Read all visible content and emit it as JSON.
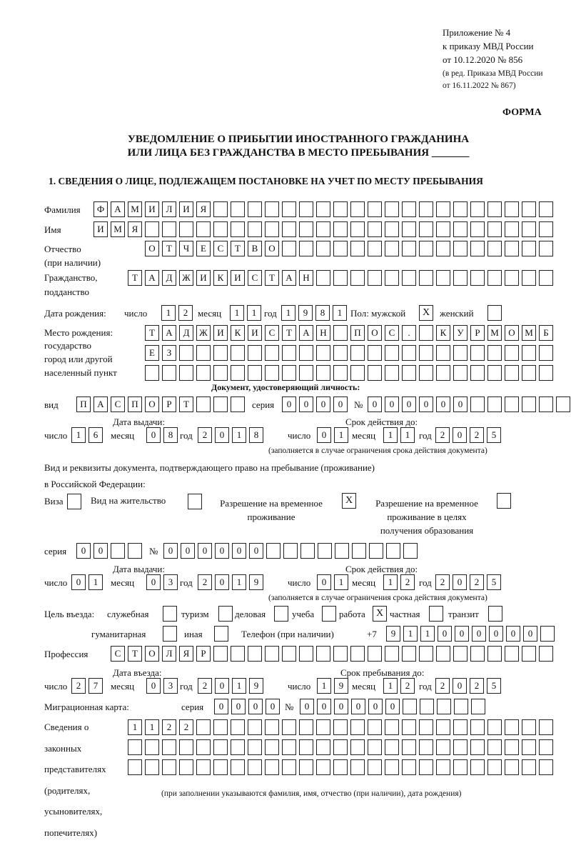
{
  "header": {
    "line1": "Приложение № 4",
    "line2": "к приказу МВД России",
    "line3": "от 10.12.2020 № 856",
    "line4": "(в ред. Приказа МВД России",
    "line5": "от 16.11.2022 № 867)",
    "form_label": "ФОРМА"
  },
  "title": {
    "line1": "УВЕДОМЛЕНИЕ О ПРИБЫТИИ ИНОСТРАННОГО ГРАЖДАНИНА",
    "line2": "ИЛИ ЛИЦА БЕЗ ГРАЖДАНСТВА В МЕСТО ПРЕБЫВАНИЯ _______"
  },
  "section1": "1. СВЕДЕНИЯ О ЛИЦЕ, ПОДЛЕЖАЩЕМ ПОСТАНОВКЕ НА УЧЕТ ПО МЕСТУ ПРЕБЫВАНИЯ",
  "person": {
    "surname_label": "Фамилия",
    "surname": [
      "Ф",
      "А",
      "М",
      "И",
      "Л",
      "И",
      "Я",
      "",
      "",
      "",
      "",
      "",
      "",
      "",
      "",
      "",
      "",
      "",
      "",
      "",
      "",
      "",
      "",
      "",
      "",
      "",
      ""
    ],
    "name_label": "Имя",
    "name": [
      "И",
      "М",
      "Я",
      "",
      "",
      "",
      "",
      "",
      "",
      "",
      "",
      "",
      "",
      "",
      "",
      "",
      "",
      "",
      "",
      "",
      "",
      "",
      "",
      "",
      "",
      "",
      ""
    ],
    "patronymic_label": "Отчество",
    "patronymic_note": "(при наличии)",
    "patronymic": [
      "О",
      "Т",
      "Ч",
      "Е",
      "С",
      "Т",
      "В",
      "О",
      "",
      "",
      "",
      "",
      "",
      "",
      "",
      "",
      "",
      "",
      "",
      "",
      "",
      "",
      "",
      ""
    ],
    "citizenship_label": "Гражданство,",
    "citizenship_label2": "подданство",
    "citizenship": [
      "Т",
      "А",
      "Д",
      "Ж",
      "И",
      "К",
      "И",
      "С",
      "Т",
      "А",
      "Н",
      "",
      "",
      "",
      "",
      "",
      "",
      "",
      "",
      "",
      "",
      "",
      "",
      "",
      ""
    ],
    "birth_date_label": "Дата рождения:",
    "day_label": "число",
    "month_label": "месяц",
    "year_label": "год",
    "birth_day": [
      "1",
      "2"
    ],
    "birth_month": [
      "1",
      "1"
    ],
    "birth_year": [
      "1",
      "9",
      "8",
      "1"
    ],
    "sex_label": "Пол: мужской",
    "male": "X",
    "female_label": "женский",
    "female": "",
    "birth_place_label1": "Место рождения:",
    "birth_place_label2": "государство",
    "birth_place_label3": "город или другой",
    "birth_place_label4": "населенный пункт",
    "birth_place_row1": [
      "Т",
      "А",
      "Д",
      "Ж",
      "И",
      "К",
      "И",
      "С",
      "Т",
      "А",
      "Н",
      "",
      "П",
      "О",
      "С",
      ".",
      "",
      "К",
      "У",
      "Р",
      "М",
      "О",
      "М",
      "Б"
    ],
    "birth_place_row2": [
      "Е",
      "З",
      "",
      "",
      "",
      "",
      "",
      "",
      "",
      "",
      "",
      "",
      "",
      "",
      "",
      "",
      "",
      "",
      "",
      "",
      "",
      "",
      "",
      ""
    ],
    "birth_place_row3": [
      "",
      "",
      "",
      "",
      "",
      "",
      "",
      "",
      "",
      "",
      "",
      "",
      "",
      "",
      "",
      "",
      "",
      "",
      "",
      "",
      "",
      "",
      "",
      ""
    ]
  },
  "id_doc": {
    "heading": "Документ, удостоверяющий личность:",
    "type_label": "вид",
    "type": [
      "П",
      "А",
      "С",
      "П",
      "О",
      "Р",
      "Т",
      "",
      "",
      ""
    ],
    "series_label": "серия",
    "series": [
      "0",
      "0",
      "0",
      "0"
    ],
    "number_label": "№",
    "number": [
      "0",
      "0",
      "0",
      "0",
      "0",
      "0",
      "",
      "",
      "",
      "",
      "",
      ""
    ],
    "issue_label": "Дата выдачи:",
    "valid_label": "Срок действия до:",
    "issue_day": [
      "1",
      "6"
    ],
    "issue_month": [
      "0",
      "8"
    ],
    "issue_year": [
      "2",
      "0",
      "1",
      "8"
    ],
    "valid_day": [
      "0",
      "1"
    ],
    "valid_month": [
      "1",
      "1"
    ],
    "valid_year": [
      "2",
      "0",
      "2",
      "5"
    ],
    "note": "(заполняется в случае ограничения срока действия документа)"
  },
  "permit": {
    "intro1": "Вид и реквизиты документа, подтверждающего право на пребывание (проживание)",
    "intro2": "в Российской Федерации:",
    "visa_label": "Виза",
    "visa": "",
    "residence_label": "Вид на жительство",
    "residence": "",
    "trp_label1": "Разрешение на временное",
    "trp_label2": "проживание",
    "trp": "X",
    "trp_edu_label1": "Разрешение на временное",
    "trp_edu_label2": "проживание в целях",
    "trp_edu_label3": "получения образования",
    "trp_edu": "",
    "series_label": "серия",
    "series": [
      "0",
      "0",
      "",
      ""
    ],
    "number_label": "№",
    "number": [
      "0",
      "0",
      "0",
      "0",
      "0",
      "0",
      "",
      "",
      "",
      "",
      "",
      "",
      "",
      "",
      ""
    ],
    "issue_label": "Дата выдачи:",
    "valid_label": "Срок действия до:",
    "issue_day": [
      "0",
      "1"
    ],
    "issue_month": [
      "0",
      "3"
    ],
    "issue_year": [
      "2",
      "0",
      "1",
      "9"
    ],
    "valid_day": [
      "0",
      "1"
    ],
    "valid_month": [
      "1",
      "2"
    ],
    "valid_year": [
      "2",
      "0",
      "2",
      "5"
    ],
    "note": "(заполняется в случае ограничения срока действия документа)"
  },
  "purpose": {
    "label": "Цель въезда:",
    "options": [
      {
        "label": "служебная",
        "mark": ""
      },
      {
        "label": "туризм",
        "mark": ""
      },
      {
        "label": "деловая",
        "mark": ""
      },
      {
        "label": "учеба",
        "mark": ""
      },
      {
        "label": "работа",
        "mark": "X"
      },
      {
        "label": "частная",
        "mark": ""
      },
      {
        "label": "транзит",
        "mark": ""
      },
      {
        "label": "гуманитарная",
        "mark": ""
      },
      {
        "label": "иная",
        "mark": ""
      }
    ]
  },
  "phone": {
    "label": "Телефон (при наличии)",
    "prefix": "+7",
    "digits": [
      "9",
      "1",
      "1",
      "0",
      "0",
      "0",
      "0",
      "0",
      "0",
      ""
    ]
  },
  "profession": {
    "label": "Профессия",
    "value": [
      "С",
      "Т",
      "О",
      "Л",
      "Я",
      "Р",
      "",
      "",
      "",
      "",
      "",
      "",
      "",
      "",
      "",
      "",
      "",
      "",
      "",
      "",
      "",
      "",
      "",
      "",
      "",
      ""
    ]
  },
  "entry": {
    "entry_label": "Дата въезда:",
    "stay_label": "Срок пребывания до:",
    "entry_day": [
      "2",
      "7"
    ],
    "entry_month": [
      "0",
      "3"
    ],
    "entry_year": [
      "2",
      "0",
      "1",
      "9"
    ],
    "stay_day": [
      "1",
      "9"
    ],
    "stay_month": [
      "1",
      "2"
    ],
    "stay_year": [
      "2",
      "0",
      "2",
      "5"
    ]
  },
  "migration_card": {
    "label": "Миграционная карта:",
    "series_label": "серия",
    "series": [
      "0",
      "0",
      "0",
      "0"
    ],
    "number_label": "№",
    "number": [
      "0",
      "0",
      "0",
      "0",
      "0",
      "0",
      "",
      "",
      "",
      "",
      ""
    ]
  },
  "representatives": {
    "label": [
      "Сведения о",
      "законных",
      "представителях",
      "(родителях,",
      "усыновителях,",
      "попечителях)"
    ],
    "row1": [
      "1",
      "1",
      "2",
      "2",
      "",
      "",
      "",
      "",
      "",
      "",
      "",
      "",
      "",
      "",
      "",
      "",
      "",
      "",
      "",
      "",
      "",
      "",
      "",
      "",
      ""
    ],
    "row2": [
      "",
      "",
      "",
      "",
      "",
      "",
      "",
      "",
      "",
      "",
      "",
      "",
      "",
      "",
      "",
      "",
      "",
      "",
      "",
      "",
      "",
      "",
      "",
      "",
      ""
    ],
    "row3": [
      "",
      "",
      "",
      "",
      "",
      "",
      "",
      "",
      "",
      "",
      "",
      "",
      "",
      "",
      "",
      "",
      "",
      "",
      "",
      "",
      "",
      "",
      "",
      "",
      ""
    ],
    "note": "(при заполнении указываются фамилия, имя, отчество (при наличии), дата рождения)"
  }
}
